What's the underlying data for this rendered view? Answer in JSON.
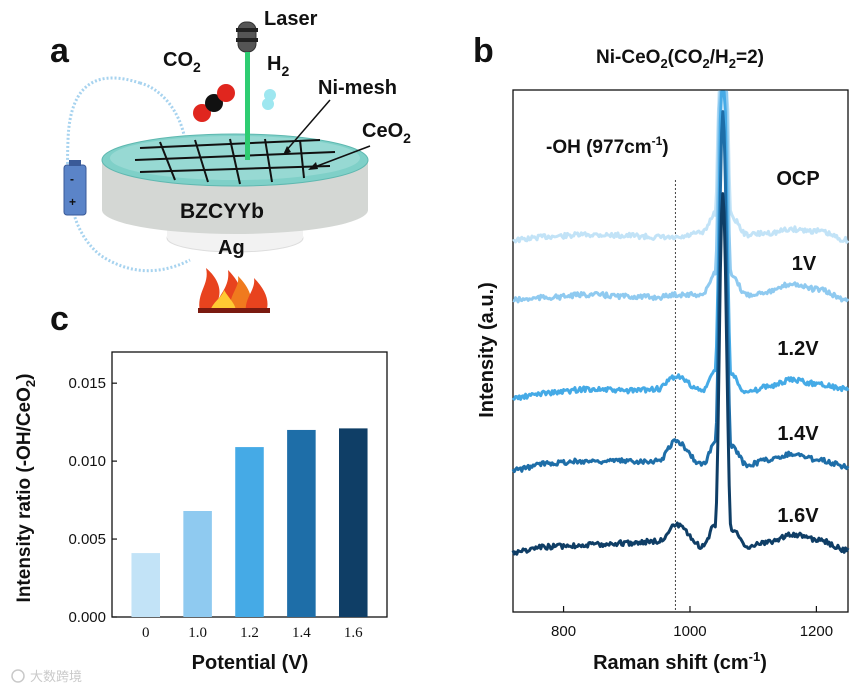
{
  "panel_a": {
    "letter": "a",
    "laser_label": "Laser",
    "co2_label": "CO",
    "co2_sub": "2",
    "h2_label": "H",
    "h2_sub": "2",
    "nimesh_label": "Ni-mesh",
    "ceo2_label": "CeO",
    "ceo2_sub": "2",
    "disk_label": "BZCYYb",
    "ag_label": "Ag",
    "battery_minus": "-",
    "battery_plus": "+"
  },
  "panel_b": {
    "letter": "b",
    "title_main": "Ni-CeO",
    "title_sub1": "2",
    "title_mid": "(CO",
    "title_sub2": "2",
    "title_mid2": "/H",
    "title_sub3": "2",
    "title_end": "=2)",
    "oh_label": "-OH (977cm",
    "oh_sup": "-1",
    "oh_end": ")",
    "xlabel": "Raman shift (cm",
    "xlabel_sup": "-1",
    "xlabel_end": ")",
    "ylabel": "Intensity (a.u.)"
  },
  "panel_c": {
    "letter": "c",
    "xlabel": "Potential (V)",
    "ylabel": "Intensity ratio (-OH/CeO",
    "ylabel_sub": "2",
    "ylabel_end": ")"
  },
  "watermark": "大数跨境",
  "colors": {
    "c0": "#c2e3f7",
    "c1": "#8fcaf0",
    "c2": "#45aae6",
    "c3": "#1e6ea8",
    "c4": "#0f3e66",
    "fire": "#e8431e",
    "laser": "#2ecc71"
  },
  "chart_data": [
    {
      "type": "bar",
      "panel": "c",
      "categories": [
        "0",
        "1.0",
        "1.2",
        "1.4",
        "1.6"
      ],
      "values": [
        0.0041,
        0.0068,
        0.0109,
        0.012,
        0.0121
      ],
      "xlabel": "Potential (V)",
      "ylabel": "Intensity ratio (-OH/CeO2)",
      "ylim": [
        0,
        0.017
      ],
      "yticks": [
        "0.000",
        "0.005",
        "0.010",
        "0.015"
      ],
      "ytick_values": [
        0,
        0.005,
        0.01,
        0.015
      ],
      "grid": false
    },
    {
      "type": "line",
      "panel": "b",
      "title": "Ni-CeO2(CO2/H2=2)",
      "xlabel": "Raman shift (cm-1)",
      "ylabel": "Intensity (a.u.)",
      "xlim": [
        720,
        1250
      ],
      "xticks": [
        "800",
        "1000",
        "1200"
      ],
      "xtick_values": [
        800,
        1000,
        1200
      ],
      "reference_line_x": 977,
      "series": [
        {
          "name": "OCP",
          "x": [
            720,
            780,
            840,
            900,
            950,
            977,
            1020,
            1040,
            1052,
            1065,
            1090,
            1130,
            1160,
            1200,
            1250
          ],
          "y": [
            0.0,
            0.2,
            0.3,
            0.25,
            0.15,
            0.1,
            0.4,
            1.5,
            20.0,
            1.3,
            0.3,
            0.4,
            0.6,
            0.5,
            0.0
          ]
        },
        {
          "name": "1V",
          "x": [
            720,
            780,
            840,
            900,
            950,
            977,
            1020,
            1040,
            1052,
            1065,
            1090,
            1130,
            1160,
            1200,
            1250
          ],
          "y": [
            0.0,
            0.15,
            0.3,
            0.2,
            0.15,
            0.3,
            0.3,
            1.5,
            20.0,
            1.3,
            0.3,
            0.5,
            0.9,
            0.6,
            0.0
          ]
        },
        {
          "name": "1.2V",
          "x": [
            720,
            780,
            840,
            900,
            950,
            977,
            1020,
            1040,
            1052,
            1065,
            1090,
            1130,
            1160,
            1200,
            1250
          ],
          "y": [
            0.0,
            0.3,
            0.5,
            0.4,
            0.5,
            1.2,
            0.4,
            1.5,
            20.0,
            1.3,
            0.3,
            0.7,
            1.0,
            0.8,
            0.5
          ]
        },
        {
          "name": "1.4V",
          "x": [
            720,
            780,
            840,
            900,
            950,
            977,
            1020,
            1040,
            1052,
            1065,
            1090,
            1130,
            1160,
            1200,
            1250
          ],
          "y": [
            0.0,
            0.4,
            0.5,
            0.5,
            0.5,
            1.6,
            0.3,
            1.5,
            20.0,
            1.3,
            0.3,
            0.6,
            0.9,
            0.6,
            0.2
          ]
        },
        {
          "name": "1.6V",
          "x": [
            720,
            780,
            840,
            900,
            950,
            977,
            1020,
            1040,
            1052,
            1065,
            1090,
            1130,
            1160,
            1200,
            1250
          ],
          "y": [
            0.0,
            0.3,
            0.4,
            0.5,
            0.6,
            1.5,
            0.3,
            1.5,
            20.0,
            1.3,
            0.3,
            0.6,
            1.0,
            0.7,
            0.1
          ]
        }
      ]
    }
  ]
}
